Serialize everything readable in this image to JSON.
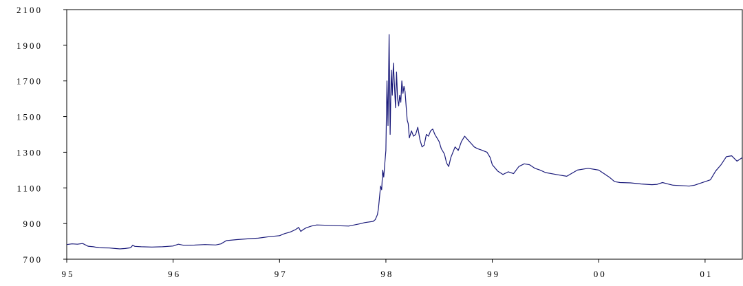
{
  "chart_data": {
    "type": "line",
    "title": "",
    "xlabel": "",
    "ylabel": "",
    "x_ticks": [
      "95",
      "96",
      "97",
      "98",
      "99",
      "00",
      "01"
    ],
    "y_ticks": [
      "700",
      "900",
      "1100",
      "1300",
      "1500",
      "1700",
      "1900",
      "2100"
    ],
    "ylim": [
      700,
      2100
    ],
    "xlim": [
      1995.0,
      2001.35
    ],
    "grid": false,
    "line_color": "#1a1a7a",
    "series": [
      {
        "values": [
          [
            1995.0,
            782
          ],
          [
            1995.05,
            786
          ],
          [
            1995.1,
            784
          ],
          [
            1995.15,
            788
          ],
          [
            1995.2,
            773
          ],
          [
            1995.25,
            770
          ],
          [
            1995.3,
            764
          ],
          [
            1995.4,
            763
          ],
          [
            1995.5,
            758
          ],
          [
            1995.55,
            760
          ],
          [
            1995.6,
            764
          ],
          [
            1995.62,
            778
          ],
          [
            1995.64,
            772
          ],
          [
            1995.7,
            770
          ],
          [
            1995.8,
            768
          ],
          [
            1995.9,
            770
          ],
          [
            1996.0,
            774
          ],
          [
            1996.05,
            784
          ],
          [
            1996.1,
            778
          ],
          [
            1996.2,
            779
          ],
          [
            1996.3,
            782
          ],
          [
            1996.4,
            780
          ],
          [
            1996.45,
            786
          ],
          [
            1996.5,
            804
          ],
          [
            1996.6,
            810
          ],
          [
            1996.7,
            814
          ],
          [
            1996.8,
            818
          ],
          [
            1996.9,
            826
          ],
          [
            1997.0,
            832
          ],
          [
            1997.05,
            844
          ],
          [
            1997.1,
            852
          ],
          [
            1997.15,
            866
          ],
          [
            1997.18,
            878
          ],
          [
            1997.2,
            856
          ],
          [
            1997.22,
            865
          ],
          [
            1997.25,
            876
          ],
          [
            1997.3,
            886
          ],
          [
            1997.35,
            892
          ],
          [
            1997.45,
            890
          ],
          [
            1997.55,
            888
          ],
          [
            1997.65,
            886
          ],
          [
            1997.75,
            898
          ],
          [
            1997.8,
            905
          ],
          [
            1997.88,
            912
          ],
          [
            1997.9,
            922
          ],
          [
            1997.92,
            950
          ],
          [
            1997.93,
            985
          ],
          [
            1997.94,
            1050
          ],
          [
            1997.95,
            1110
          ],
          [
            1997.96,
            1090
          ],
          [
            1997.97,
            1200
          ],
          [
            1997.98,
            1160
          ],
          [
            1997.99,
            1240
          ],
          [
            1998.0,
            1310
          ],
          [
            1998.01,
            1700
          ],
          [
            1998.02,
            1450
          ],
          [
            1998.03,
            1960
          ],
          [
            1998.04,
            1400
          ],
          [
            1998.05,
            1760
          ],
          [
            1998.06,
            1620
          ],
          [
            1998.07,
            1800
          ],
          [
            1998.08,
            1680
          ],
          [
            1998.09,
            1550
          ],
          [
            1998.1,
            1750
          ],
          [
            1998.11,
            1600
          ],
          [
            1998.12,
            1560
          ],
          [
            1998.13,
            1620
          ],
          [
            1998.14,
            1580
          ],
          [
            1998.15,
            1700
          ],
          [
            1998.16,
            1630
          ],
          [
            1998.17,
            1670
          ],
          [
            1998.18,
            1640
          ],
          [
            1998.19,
            1560
          ],
          [
            1998.2,
            1480
          ],
          [
            1998.21,
            1460
          ],
          [
            1998.22,
            1380
          ],
          [
            1998.24,
            1420
          ],
          [
            1998.26,
            1390
          ],
          [
            1998.28,
            1400
          ],
          [
            1998.3,
            1440
          ],
          [
            1998.32,
            1370
          ],
          [
            1998.34,
            1330
          ],
          [
            1998.36,
            1340
          ],
          [
            1998.38,
            1400
          ],
          [
            1998.4,
            1390
          ],
          [
            1998.42,
            1420
          ],
          [
            1998.44,
            1430
          ],
          [
            1998.46,
            1400
          ],
          [
            1998.48,
            1380
          ],
          [
            1998.5,
            1360
          ],
          [
            1998.52,
            1320
          ],
          [
            1998.55,
            1290
          ],
          [
            1998.57,
            1240
          ],
          [
            1998.59,
            1220
          ],
          [
            1998.61,
            1270
          ],
          [
            1998.63,
            1300
          ],
          [
            1998.65,
            1330
          ],
          [
            1998.68,
            1310
          ],
          [
            1998.71,
            1360
          ],
          [
            1998.74,
            1390
          ],
          [
            1998.77,
            1370
          ],
          [
            1998.8,
            1350
          ],
          [
            1998.83,
            1330
          ],
          [
            1998.86,
            1320
          ],
          [
            1998.9,
            1312
          ],
          [
            1998.95,
            1300
          ],
          [
            1998.98,
            1270
          ],
          [
            1999.0,
            1230
          ],
          [
            1999.05,
            1195
          ],
          [
            1999.1,
            1175
          ],
          [
            1999.15,
            1190
          ],
          [
            1999.2,
            1180
          ],
          [
            1999.25,
            1220
          ],
          [
            1999.3,
            1235
          ],
          [
            1999.35,
            1230
          ],
          [
            1999.4,
            1210
          ],
          [
            1999.45,
            1200
          ],
          [
            1999.5,
            1186
          ],
          [
            1999.6,
            1175
          ],
          [
            1999.7,
            1165
          ],
          [
            1999.8,
            1200
          ],
          [
            1999.9,
            1210
          ],
          [
            2000.0,
            1200
          ],
          [
            2000.1,
            1160
          ],
          [
            2000.15,
            1135
          ],
          [
            2000.2,
            1130
          ],
          [
            2000.3,
            1128
          ],
          [
            2000.4,
            1122
          ],
          [
            2000.5,
            1118
          ],
          [
            2000.55,
            1120
          ],
          [
            2000.6,
            1130
          ],
          [
            2000.65,
            1122
          ],
          [
            2000.7,
            1115
          ],
          [
            2000.8,
            1112
          ],
          [
            2000.85,
            1110
          ],
          [
            2000.9,
            1115
          ],
          [
            2000.95,
            1125
          ],
          [
            2001.0,
            1135
          ],
          [
            2001.05,
            1145
          ],
          [
            2001.1,
            1195
          ],
          [
            2001.15,
            1230
          ],
          [
            2001.2,
            1275
          ],
          [
            2001.25,
            1280
          ],
          [
            2001.3,
            1250
          ],
          [
            2001.35,
            1270
          ]
        ]
      }
    ]
  }
}
